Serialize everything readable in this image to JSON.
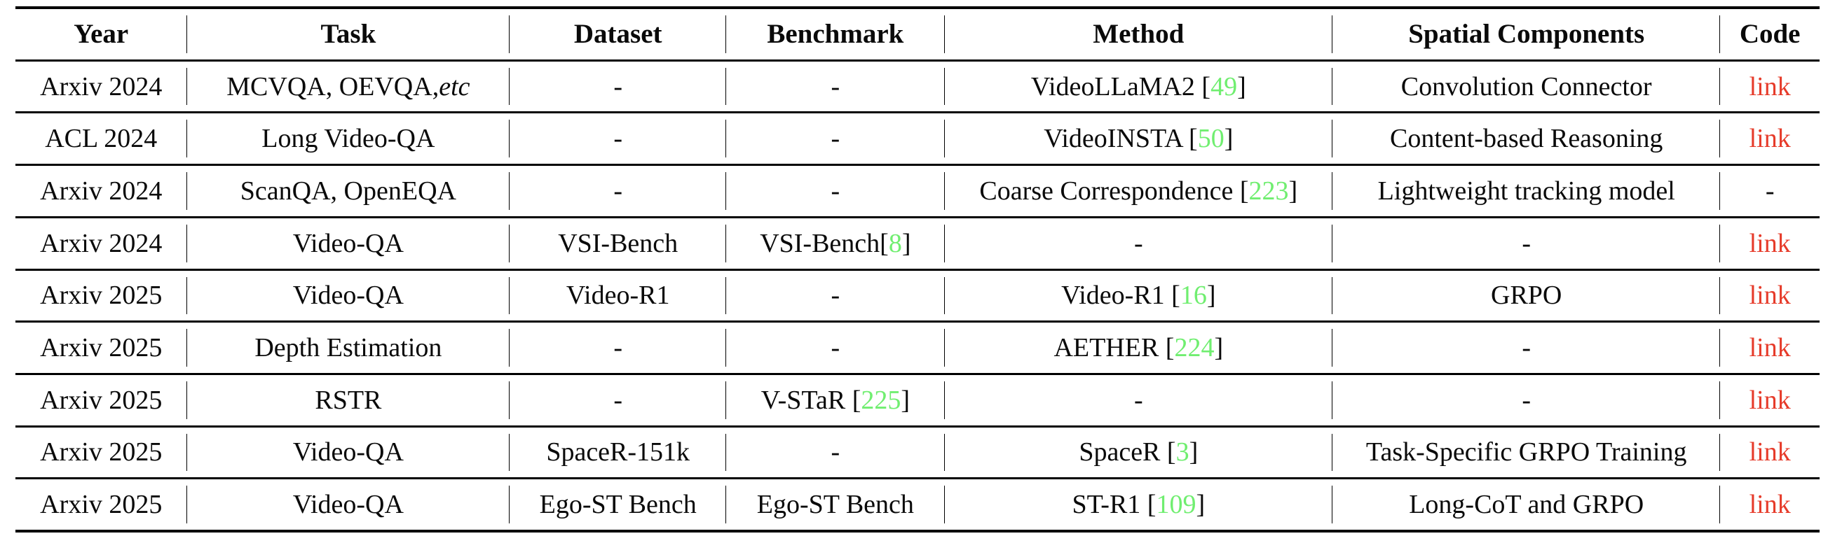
{
  "colors": {
    "citation_green": "#70ee70",
    "link_red": "#e63b2a",
    "rule_black": "#000000"
  },
  "table": {
    "columns": [
      {
        "key": "year",
        "label": "Year"
      },
      {
        "key": "task",
        "label": "Task"
      },
      {
        "key": "dataset",
        "label": "Dataset"
      },
      {
        "key": "benchmark",
        "label": "Benchmark"
      },
      {
        "key": "method",
        "label": "Method"
      },
      {
        "key": "spatial",
        "label": "Spatial Components"
      },
      {
        "key": "code",
        "label": "Code"
      }
    ],
    "rows": [
      {
        "cells": [
          [
            {
              "t": "Arxiv 2024"
            }
          ],
          [
            {
              "t": "MCVQA, OEVQA, "
            },
            {
              "t": "etc",
              "s": "italic"
            }
          ],
          [
            {
              "t": "-"
            }
          ],
          [
            {
              "t": "-"
            }
          ],
          [
            {
              "t": "VideoLLaMA2 ["
            },
            {
              "t": "49",
              "s": "ref"
            },
            {
              "t": "]"
            }
          ],
          [
            {
              "t": "Convolution Connector"
            }
          ],
          [
            {
              "t": "link",
              "s": "link"
            }
          ]
        ]
      },
      {
        "cells": [
          [
            {
              "t": "ACL 2024"
            }
          ],
          [
            {
              "t": "Long Video-QA"
            }
          ],
          [
            {
              "t": "-"
            }
          ],
          [
            {
              "t": "-"
            }
          ],
          [
            {
              "t": "VideoINSTA ["
            },
            {
              "t": "50",
              "s": "ref"
            },
            {
              "t": "]"
            }
          ],
          [
            {
              "t": "Content-based Reasoning"
            }
          ],
          [
            {
              "t": "link",
              "s": "link"
            }
          ]
        ]
      },
      {
        "cells": [
          [
            {
              "t": "Arxiv 2024"
            }
          ],
          [
            {
              "t": "ScanQA, OpenEQA"
            }
          ],
          [
            {
              "t": "-"
            }
          ],
          [
            {
              "t": "-"
            }
          ],
          [
            {
              "t": "Coarse Correspondence ["
            },
            {
              "t": "223",
              "s": "ref"
            },
            {
              "t": "]"
            }
          ],
          [
            {
              "t": "Lightweight tracking model"
            }
          ],
          [
            {
              "t": "-"
            }
          ]
        ]
      },
      {
        "cells": [
          [
            {
              "t": "Arxiv 2024"
            }
          ],
          [
            {
              "t": "Video-QA"
            }
          ],
          [
            {
              "t": "VSI-Bench"
            }
          ],
          [
            {
              "t": "VSI-Bench["
            },
            {
              "t": "8",
              "s": "ref"
            },
            {
              "t": "]"
            }
          ],
          [
            {
              "t": "-"
            }
          ],
          [
            {
              "t": "-"
            }
          ],
          [
            {
              "t": "link",
              "s": "link"
            }
          ]
        ]
      },
      {
        "cells": [
          [
            {
              "t": "Arxiv 2025"
            }
          ],
          [
            {
              "t": "Video-QA"
            }
          ],
          [
            {
              "t": "Video-R1"
            }
          ],
          [
            {
              "t": "-"
            }
          ],
          [
            {
              "t": "Video-R1 ["
            },
            {
              "t": "16",
              "s": "ref"
            },
            {
              "t": "]"
            }
          ],
          [
            {
              "t": "GRPO"
            }
          ],
          [
            {
              "t": "link",
              "s": "link"
            }
          ]
        ]
      },
      {
        "cells": [
          [
            {
              "t": "Arxiv 2025"
            }
          ],
          [
            {
              "t": "Depth Estimation"
            }
          ],
          [
            {
              "t": "-"
            }
          ],
          [
            {
              "t": "-"
            }
          ],
          [
            {
              "t": "AETHER ["
            },
            {
              "t": "224",
              "s": "ref"
            },
            {
              "t": "]"
            }
          ],
          [
            {
              "t": "-"
            }
          ],
          [
            {
              "t": "link",
              "s": "link"
            }
          ]
        ]
      },
      {
        "cells": [
          [
            {
              "t": "Arxiv 2025"
            }
          ],
          [
            {
              "t": "RSTR"
            }
          ],
          [
            {
              "t": "-"
            }
          ],
          [
            {
              "t": "V-STaR ["
            },
            {
              "t": "225",
              "s": "ref"
            },
            {
              "t": "]"
            }
          ],
          [
            {
              "t": "-"
            }
          ],
          [
            {
              "t": "-"
            }
          ],
          [
            {
              "t": "link",
              "s": "link"
            }
          ]
        ]
      },
      {
        "cells": [
          [
            {
              "t": "Arxiv 2025"
            }
          ],
          [
            {
              "t": "Video-QA"
            }
          ],
          [
            {
              "t": "SpaceR-151k"
            }
          ],
          [
            {
              "t": "-"
            }
          ],
          [
            {
              "t": "SpaceR ["
            },
            {
              "t": "3",
              "s": "ref"
            },
            {
              "t": "]"
            }
          ],
          [
            {
              "t": "Task-Specific GRPO Training"
            }
          ],
          [
            {
              "t": "link",
              "s": "link"
            }
          ]
        ]
      },
      {
        "cells": [
          [
            {
              "t": "Arxiv 2025"
            }
          ],
          [
            {
              "t": "Video-QA"
            }
          ],
          [
            {
              "t": "Ego-ST Bench"
            }
          ],
          [
            {
              "t": "Ego-ST Bench"
            }
          ],
          [
            {
              "t": "ST-R1 ["
            },
            {
              "t": "109",
              "s": "ref"
            },
            {
              "t": "]"
            }
          ],
          [
            {
              "t": "Long-CoT and GRPO"
            }
          ],
          [
            {
              "t": "link",
              "s": "link"
            }
          ]
        ]
      }
    ]
  }
}
